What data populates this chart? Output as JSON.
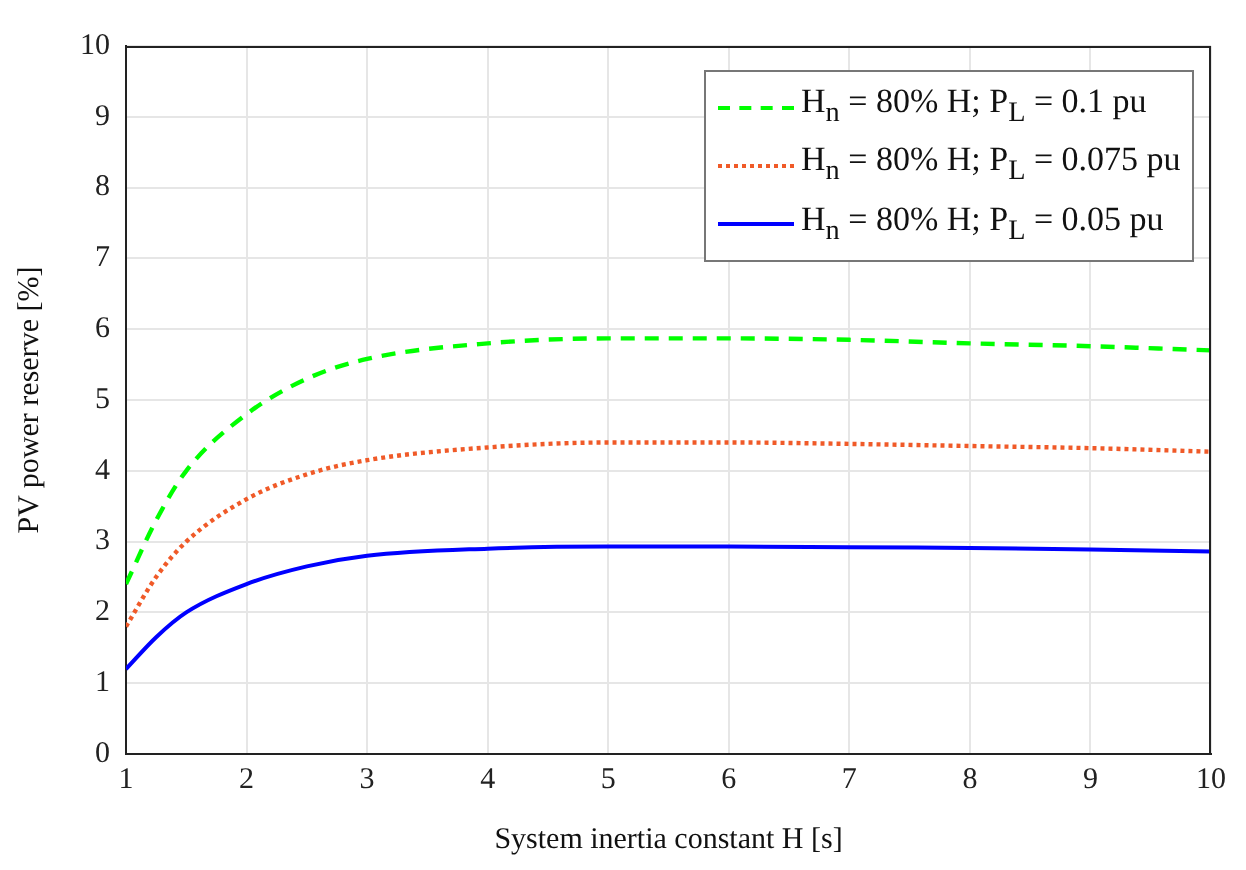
{
  "chart_data": {
    "type": "line",
    "xlabel": "System inertia constant H [s]",
    "ylabel": "PV power reserve [%]",
    "x": [
      1,
      1.25,
      1.5,
      2,
      2.5,
      3,
      4,
      5,
      6,
      7,
      8,
      9,
      10
    ],
    "series": [
      {
        "name": "H$_{n}$ = 80% H; P$_{L}$ = 0.1 pu",
        "color": "#00ff00",
        "line_style": "dashed",
        "values": [
          2.4,
          3.3,
          4.0,
          4.8,
          5.3,
          5.58,
          5.8,
          5.87,
          5.87,
          5.85,
          5.8,
          5.76,
          5.7
        ]
      },
      {
        "name": "H$_{n}$ = 80% H; P$_{L}$ = 0.075 pu",
        "color": "#f05a28",
        "line_style": "dotted",
        "values": [
          1.8,
          2.5,
          3.0,
          3.6,
          3.95,
          4.15,
          4.33,
          4.4,
          4.4,
          4.38,
          4.35,
          4.32,
          4.27
        ]
      },
      {
        "name": "H$_{n}$ = 80% H; P$_{L}$ = 0.05 pu",
        "color": "#0000ff",
        "line_style": "solid",
        "values": [
          1.2,
          1.65,
          2.0,
          2.4,
          2.65,
          2.8,
          2.9,
          2.93,
          2.93,
          2.92,
          2.91,
          2.89,
          2.86
        ]
      }
    ],
    "xlim": [
      1,
      10
    ],
    "xticks": [
      1,
      2,
      3,
      4,
      5,
      6,
      7,
      8,
      9,
      10
    ],
    "ylim": [
      0,
      10
    ],
    "yticks": [
      0,
      1,
      2,
      3,
      4,
      5,
      6,
      7,
      8,
      9,
      10
    ],
    "grid": true,
    "legend": "top right",
    "marker": "none"
  }
}
